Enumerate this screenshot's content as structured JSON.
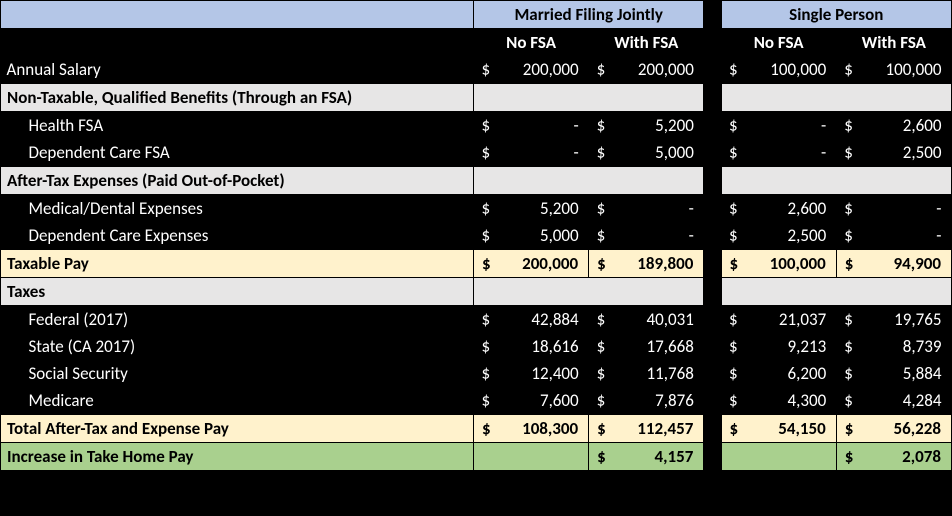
{
  "colors": {
    "header_blue": "#b4c6e7",
    "sub_header_orange": "#ed7d31",
    "section_grey": "#e7e6e6",
    "highlight_yellow": "#fff2cc",
    "highlight_green": "#a9d08e",
    "background": "#000000"
  },
  "headers": {
    "group1": "Married Filing Jointly",
    "group2": "Single Person",
    "no_fsa": "No FSA",
    "with_fsa": "With FSA"
  },
  "rows": {
    "annual_salary": {
      "label": "Annual Salary",
      "mfj_no": "200,000",
      "mfj_with": "200,000",
      "sp_no": "100,000",
      "sp_with": "100,000"
    },
    "section_nontaxable": "Non-Taxable, Qualified Benefits (Through an FSA)",
    "health_fsa": {
      "label": "Health FSA",
      "mfj_no": "-",
      "mfj_with": "5,200",
      "sp_no": "-",
      "sp_with": "2,600"
    },
    "dependent_care": {
      "label": "Dependent Care FSA",
      "mfj_no": "-",
      "mfj_with": "5,000",
      "sp_no": "-",
      "sp_with": "2,500"
    },
    "section_aftertax_exp": "After-Tax Expenses (Paid Out-of-Pocket)",
    "medical_dental": {
      "label": "Medical/Dental Expenses",
      "mfj_no": "5,200",
      "mfj_with": "-",
      "sp_no": "2,600",
      "sp_with": "-"
    },
    "dependent_care_exp": {
      "label": "Dependent Care Expenses",
      "mfj_no": "5,000",
      "mfj_with": "-",
      "sp_no": "2,500",
      "sp_with": "-"
    },
    "taxable_pay": {
      "label": "Taxable Pay",
      "mfj_no": "200,000",
      "mfj_with": "189,800",
      "sp_no": "100,000",
      "sp_with": "94,900"
    },
    "section_taxes": "Taxes",
    "federal": {
      "label": "Federal (2017)",
      "mfj_no": "42,884",
      "mfj_with": "40,031",
      "sp_no": "21,037",
      "sp_with": "19,765"
    },
    "state": {
      "label": "State (CA 2017)",
      "mfj_no": "18,616",
      "mfj_with": "17,668",
      "sp_no": "9,213",
      "sp_with": "8,739"
    },
    "ssn": {
      "label": "Social Security",
      "mfj_no": "12,400",
      "mfj_with": "11,768",
      "sp_no": "6,200",
      "sp_with": "5,884"
    },
    "medicare": {
      "label": "Medicare",
      "mfj_no": "7,600",
      "mfj_with": "7,876",
      "sp_no": "4,300",
      "sp_with": "4,284"
    },
    "total_after": {
      "label": "Total After-Tax and Expense Pay",
      "mfj_no": "108,300",
      "mfj_with": "112,457",
      "sp_no": "54,150",
      "sp_with": "56,228"
    },
    "increase": {
      "label": "Increase in Take Home Pay",
      "mfj_with": "4,157",
      "sp_with": "2,078"
    }
  }
}
